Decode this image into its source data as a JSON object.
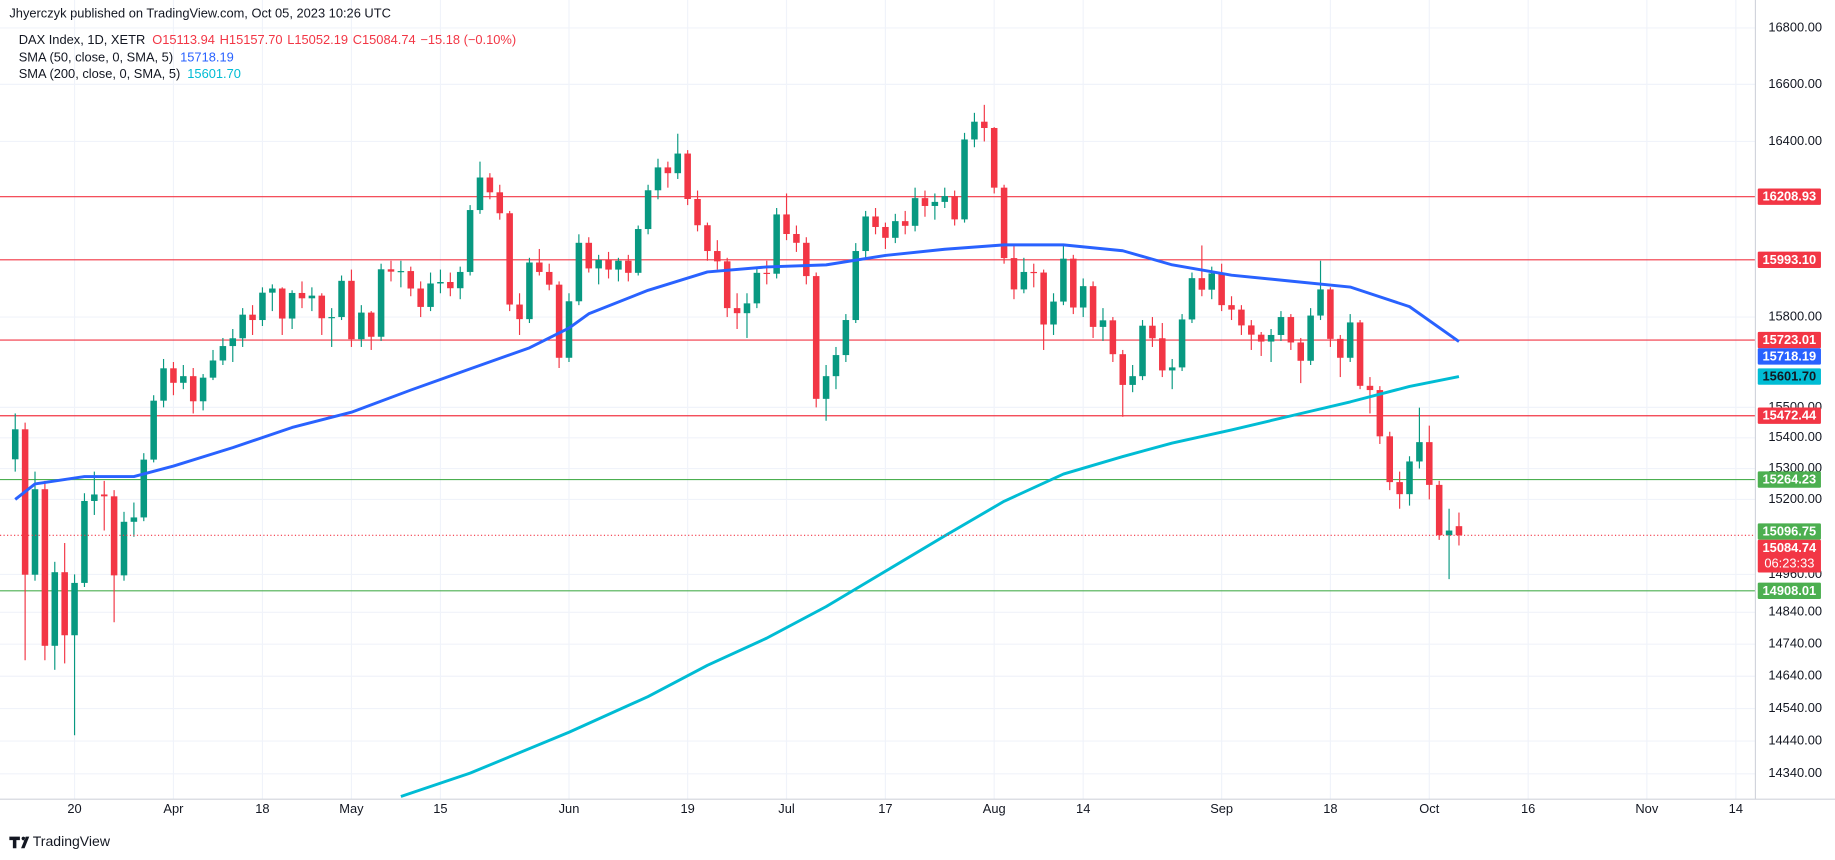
{
  "header": {
    "published": "Jhyerczyk published on TradingView.com, Oct 05, 2023 10:26 UTC",
    "symbol": "DAX Index, 1D, XETR",
    "ohlc": [
      "O15113.94",
      "H15157.70",
      "L15052.19",
      "C15084.74"
    ],
    "change": "−15.18 (−0.10%)"
  },
  "footer": {
    "brand": "TradingView"
  },
  "chart_data": {
    "type": "candlestick",
    "log_scale": true,
    "grid": true,
    "up_color": "#089981",
    "down_color": "#f23645",
    "xlim": [
      -1.54,
      175.98
    ],
    "ylim": [
      14263,
      16900
    ],
    "xticks": [
      {
        "value": 6,
        "label": "20"
      },
      {
        "value": 16,
        "label": "Apr"
      },
      {
        "value": 25,
        "label": "18"
      },
      {
        "value": 34,
        "label": "May"
      },
      {
        "value": 43,
        "label": "15"
      },
      {
        "value": 56,
        "label": "Jun"
      },
      {
        "value": 68,
        "label": "19"
      },
      {
        "value": 78,
        "label": "Jul"
      },
      {
        "value": 88,
        "label": "17"
      },
      {
        "value": 99,
        "label": "Aug"
      },
      {
        "value": 108,
        "label": "14"
      },
      {
        "value": 122,
        "label": "Sep"
      },
      {
        "value": 133,
        "label": "18"
      },
      {
        "value": 143,
        "label": "Oct"
      },
      {
        "value": 153,
        "label": "16"
      },
      {
        "value": 165,
        "label": "Nov"
      },
      {
        "value": 174,
        "label": "14"
      }
    ],
    "yticks": [
      {
        "value": 16800,
        "label": "16800.00"
      },
      {
        "value": 16600,
        "label": "16600.00"
      },
      {
        "value": 16400,
        "label": "16400.00"
      },
      {
        "value": 15800,
        "label": "15800.00"
      },
      {
        "value": 15500,
        "label": "15500.00"
      },
      {
        "value": 15400,
        "label": "15400.00"
      },
      {
        "value": 15300,
        "label": "15300.00"
      },
      {
        "value": 15200,
        "label": "15200.00"
      },
      {
        "value": 14960,
        "label": "14960.00"
      },
      {
        "value": 14840,
        "label": "14840.00"
      },
      {
        "value": 14740,
        "label": "14740.00"
      },
      {
        "value": 14640,
        "label": "14640.00"
      },
      {
        "value": 14540,
        "label": "14540.00"
      },
      {
        "value": 14440,
        "label": "14440.00"
      },
      {
        "value": 14340,
        "label": "14340.00"
      }
    ],
    "candles": [
      [
        15330,
        15480,
        15290,
        15428
      ],
      [
        15428,
        15450,
        14690,
        14959
      ],
      [
        14959,
        15290,
        14940,
        15233
      ],
      [
        15233,
        15260,
        14690,
        14735
      ],
      [
        14735,
        15000,
        14660,
        14967
      ],
      [
        14967,
        15060,
        14680,
        14768
      ],
      [
        14768,
        14960,
        14458,
        14933
      ],
      [
        14933,
        15220,
        14920,
        15195
      ],
      [
        15195,
        15290,
        15150,
        15216
      ],
      [
        15216,
        15260,
        15100,
        15210
      ],
      [
        15210,
        15230,
        14809,
        14957
      ],
      [
        14957,
        15160,
        14940,
        15128
      ],
      [
        15128,
        15190,
        15080,
        15142
      ],
      [
        15142,
        15350,
        15130,
        15329
      ],
      [
        15329,
        15540,
        15320,
        15522
      ],
      [
        15522,
        15660,
        15500,
        15629
      ],
      [
        15629,
        15650,
        15540,
        15581
      ],
      [
        15581,
        15640,
        15560,
        15603
      ],
      [
        15603,
        15630,
        15480,
        15520
      ],
      [
        15520,
        15610,
        15490,
        15598
      ],
      [
        15598,
        15690,
        15590,
        15655
      ],
      [
        15655,
        15730,
        15640,
        15703
      ],
      [
        15703,
        15760,
        15650,
        15729
      ],
      [
        15729,
        15830,
        15700,
        15808
      ],
      [
        15808,
        15840,
        15740,
        15790
      ],
      [
        15790,
        15900,
        15770,
        15882
      ],
      [
        15882,
        15910,
        15820,
        15896
      ],
      [
        15896,
        15900,
        15740,
        15795
      ],
      [
        15795,
        15890,
        15760,
        15881
      ],
      [
        15881,
        15920,
        15830,
        15863
      ],
      [
        15863,
        15900,
        15820,
        15872
      ],
      [
        15872,
        15880,
        15740,
        15796
      ],
      [
        15796,
        15830,
        15700,
        15800
      ],
      [
        15800,
        15940,
        15790,
        15922
      ],
      [
        15922,
        15960,
        15700,
        15726
      ],
      [
        15726,
        15840,
        15700,
        15815
      ],
      [
        15815,
        15820,
        15690,
        15734
      ],
      [
        15734,
        15980,
        15720,
        15961
      ],
      [
        15961,
        15990,
        15920,
        15953
      ],
      [
        15953,
        15990,
        15900,
        15955
      ],
      [
        15955,
        15970,
        15870,
        15896
      ],
      [
        15896,
        15920,
        15800,
        15834
      ],
      [
        15834,
        15950,
        15820,
        15913
      ],
      [
        15913,
        15960,
        15880,
        15918
      ],
      [
        15918,
        15950,
        15870,
        15897
      ],
      [
        15897,
        15970,
        15860,
        15952
      ],
      [
        15952,
        16180,
        15940,
        16163
      ],
      [
        16163,
        16330,
        16150,
        16275
      ],
      [
        16275,
        16290,
        16200,
        16224
      ],
      [
        16224,
        16250,
        16130,
        16152
      ],
      [
        16152,
        16160,
        15820,
        15842
      ],
      [
        15842,
        15880,
        15740,
        15793
      ],
      [
        15793,
        16000,
        15780,
        15984
      ],
      [
        15984,
        16030,
        15940,
        15952
      ],
      [
        15952,
        15980,
        15890,
        15909
      ],
      [
        15909,
        15920,
        15630,
        15664
      ],
      [
        15664,
        15880,
        15650,
        15853
      ],
      [
        15853,
        16080,
        15840,
        16051
      ],
      [
        16051,
        16070,
        15950,
        15964
      ],
      [
        15964,
        16010,
        15910,
        15993
      ],
      [
        15993,
        16020,
        15930,
        15960
      ],
      [
        15960,
        16000,
        15920,
        15990
      ],
      [
        15990,
        16010,
        15920,
        15949
      ],
      [
        15949,
        16110,
        15940,
        16098
      ],
      [
        16098,
        16250,
        16080,
        16231
      ],
      [
        16231,
        16340,
        16200,
        16310
      ],
      [
        16310,
        16330,
        16240,
        16290
      ],
      [
        16290,
        16427,
        16270,
        16358
      ],
      [
        16358,
        16370,
        16180,
        16201
      ],
      [
        16201,
        16230,
        16090,
        16111
      ],
      [
        16111,
        16120,
        15990,
        16023
      ],
      [
        16023,
        16060,
        15960,
        15988
      ],
      [
        15988,
        16000,
        15800,
        15830
      ],
      [
        15830,
        15880,
        15760,
        15813
      ],
      [
        15813,
        15880,
        15730,
        15846
      ],
      [
        15846,
        15970,
        15830,
        15949
      ],
      [
        15949,
        15990,
        15910,
        15946
      ],
      [
        15946,
        16170,
        15930,
        16148
      ],
      [
        16148,
        16220,
        16060,
        16081
      ],
      [
        16081,
        16110,
        16020,
        16051
      ],
      [
        16051,
        16070,
        15910,
        15938
      ],
      [
        15938,
        15950,
        15500,
        15528
      ],
      [
        15528,
        15640,
        15456,
        15603
      ],
      [
        15603,
        15700,
        15560,
        15673
      ],
      [
        15673,
        15810,
        15650,
        15790
      ],
      [
        15790,
        16050,
        15780,
        16023
      ],
      [
        16023,
        16160,
        16000,
        16141
      ],
      [
        16141,
        16170,
        16080,
        16105
      ],
      [
        16105,
        16120,
        16030,
        16068
      ],
      [
        16068,
        16150,
        16050,
        16125
      ],
      [
        16125,
        16160,
        16080,
        16109
      ],
      [
        16109,
        16240,
        16090,
        16204
      ],
      [
        16204,
        16230,
        16140,
        16177
      ],
      [
        16177,
        16220,
        16130,
        16191
      ],
      [
        16191,
        16240,
        16170,
        16211
      ],
      [
        16211,
        16230,
        16110,
        16131
      ],
      [
        16131,
        16430,
        16120,
        16407
      ],
      [
        16407,
        16500,
        16380,
        16469
      ],
      [
        16469,
        16528,
        16400,
        16447
      ],
      [
        16447,
        16450,
        16220,
        16240
      ],
      [
        16240,
        16250,
        15980,
        15999
      ],
      [
        15999,
        16040,
        15860,
        15893
      ],
      [
        15893,
        16000,
        15880,
        15952
      ],
      [
        15952,
        15980,
        15900,
        15950
      ],
      [
        15950,
        15960,
        15690,
        15775
      ],
      [
        15775,
        15880,
        15740,
        15852
      ],
      [
        15852,
        16040,
        15840,
        15997
      ],
      [
        15997,
        16010,
        15810,
        15832
      ],
      [
        15832,
        15930,
        15800,
        15904
      ],
      [
        15904,
        15920,
        15730,
        15767
      ],
      [
        15767,
        15830,
        15720,
        15789
      ],
      [
        15789,
        15800,
        15650,
        15676
      ],
      [
        15676,
        15690,
        15469,
        15574
      ],
      [
        15574,
        15640,
        15550,
        15603
      ],
      [
        15603,
        15790,
        15590,
        15771
      ],
      [
        15771,
        15800,
        15700,
        15729
      ],
      [
        15729,
        15780,
        15600,
        15622
      ],
      [
        15622,
        15660,
        15560,
        15632
      ],
      [
        15632,
        15810,
        15620,
        15792
      ],
      [
        15792,
        15950,
        15780,
        15931
      ],
      [
        15931,
        16042,
        15870,
        15892
      ],
      [
        15892,
        15970,
        15860,
        15947
      ],
      [
        15947,
        15980,
        15820,
        15840
      ],
      [
        15840,
        15870,
        15790,
        15825
      ],
      [
        15825,
        15840,
        15740,
        15772
      ],
      [
        15772,
        15790,
        15690,
        15741
      ],
      [
        15741,
        15750,
        15670,
        15718
      ],
      [
        15718,
        15760,
        15650,
        15740
      ],
      [
        15740,
        15820,
        15720,
        15800
      ],
      [
        15800,
        15810,
        15690,
        15715
      ],
      [
        15715,
        15730,
        15580,
        15654
      ],
      [
        15654,
        15830,
        15640,
        15805
      ],
      [
        15805,
        15990,
        15790,
        15893
      ],
      [
        15893,
        15900,
        15700,
        15727
      ],
      [
        15727,
        15740,
        15600,
        15664
      ],
      [
        15664,
        15810,
        15650,
        15782
      ],
      [
        15782,
        15790,
        15560,
        15571
      ],
      [
        15571,
        15600,
        15480,
        15557
      ],
      [
        15557,
        15570,
        15380,
        15405
      ],
      [
        15405,
        15420,
        15230,
        15256
      ],
      [
        15256,
        15290,
        15170,
        15217
      ],
      [
        15217,
        15340,
        15180,
        15323
      ],
      [
        15323,
        15499,
        15300,
        15386
      ],
      [
        15386,
        15440,
        15200,
        15247
      ],
      [
        15247,
        15260,
        15070,
        15085
      ],
      [
        15085,
        15170,
        14945,
        15099.92
      ],
      [
        15113.94,
        15157.7,
        15052.19,
        15084.74
      ]
    ],
    "last_price_countdown": "06:23:33",
    "series": [
      {
        "name": "SMA (50, close, 0, SMA, 5)",
        "color": "#2962ff",
        "legend_value": "15718.19",
        "x": [
          0,
          2,
          7,
          12,
          16,
          22,
          28,
          34,
          40,
          46,
          52,
          56,
          58,
          64,
          70,
          76,
          82,
          88,
          94,
          100,
          106,
          112,
          117,
          123,
          129,
          135,
          141,
          146
        ],
        "values": [
          15200,
          15250,
          15274,
          15274,
          15308,
          15368,
          15434,
          15484,
          15557,
          15627,
          15697,
          15763,
          15811,
          15890,
          15952,
          15969,
          15976,
          16008,
          16029,
          16044,
          16044,
          16024,
          15976,
          15941,
          15921,
          15901,
          15835,
          15718.19
        ]
      },
      {
        "name": "SMA (200, close, 0, SMA, 5)",
        "color": "#00bcd4",
        "legend_value": "15601.70",
        "x": [
          39,
          46,
          56,
          64,
          70,
          76,
          82,
          88,
          94,
          100,
          106,
          112,
          117,
          123,
          129,
          135,
          141,
          146
        ],
        "values": [
          14271,
          14342,
          14467,
          14577,
          14674,
          14759,
          14858,
          14970,
          15083,
          15194,
          15282,
          15339,
          15383,
          15426,
          15472,
          15518,
          15569,
          15601.7
        ]
      }
    ],
    "hlines": [
      {
        "value": 16208.93,
        "label": "16208.93",
        "color": "#f23645"
      },
      {
        "value": 15993.1,
        "label": "15993.10",
        "color": "#f23645"
      },
      {
        "value": 15723.01,
        "label": "15723.01",
        "color": "#f23645"
      },
      {
        "value": 15472.44,
        "label": "15472.44",
        "color": "#f23645"
      },
      {
        "value": 15264.23,
        "label": "15264.23",
        "color": "#4caf50"
      },
      {
        "value": 14908.01,
        "label": "14908.01",
        "color": "#4caf50"
      }
    ],
    "badges": [
      {
        "value": 15096.75,
        "label": "15096.75",
        "color": "#4caf50"
      }
    ]
  }
}
